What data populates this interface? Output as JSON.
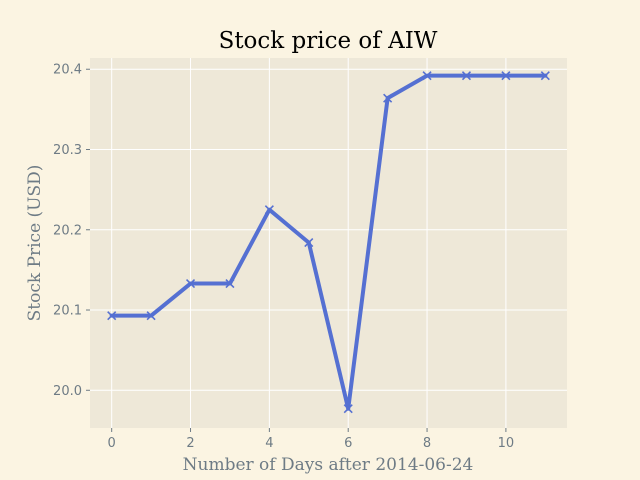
{
  "colors": {
    "figure_background": "#fbf4e2",
    "plot_background": "#eee8d8",
    "grid": "#ffffff",
    "line": "#5570d2",
    "title": "#000000",
    "axis_text": "#6e7b85"
  },
  "chart_data": {
    "type": "line",
    "title": "Stock price of AIW",
    "xlabel": "Number of Days after 2014-06-24",
    "ylabel": "Stock Price (USD)",
    "xlim": [
      -0.55,
      11.55
    ],
    "ylim": [
      19.953,
      20.414
    ],
    "xticks": [
      0,
      2,
      4,
      6,
      8,
      10
    ],
    "yticks": [
      20.0,
      20.1,
      20.2,
      20.3,
      20.4
    ],
    "ytick_labels": [
      "20.0",
      "20.1",
      "20.2",
      "20.3",
      "20.4"
    ],
    "grid": true,
    "legend": "none",
    "marker": "x",
    "series": [
      {
        "x": [
          0,
          1,
          2,
          3,
          4,
          5,
          6,
          7,
          8,
          9,
          10,
          11
        ],
        "values": [
          20.093,
          20.093,
          20.133,
          20.133,
          20.225,
          20.184,
          19.977,
          20.364,
          20.392,
          20.392,
          20.392,
          20.392
        ]
      }
    ]
  }
}
